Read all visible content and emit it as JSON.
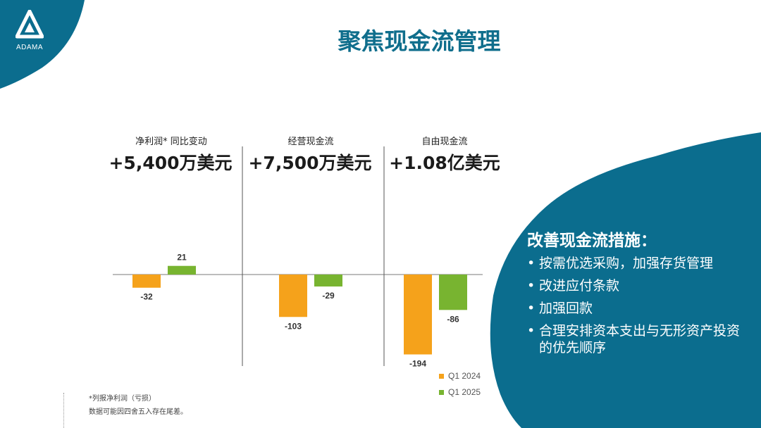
{
  "header": {
    "title": "聚焦现金流管理",
    "logo_text": "ADAMA"
  },
  "colors": {
    "brand_blue": "#0b6d8e",
    "q1_2024": "#f5a21b",
    "q1_2025": "#78b430"
  },
  "panels": [
    {
      "label": "净利润* 同比变动",
      "value": "+5,400万美元"
    },
    {
      "label": "经营现金流",
      "value": "+7,500万美元"
    },
    {
      "label": "自由现金流",
      "value": "+1.08亿美元"
    }
  ],
  "chart_data": {
    "type": "bar",
    "categories": [
      "净利润* 同比变动",
      "经营现金流",
      "自由现金流"
    ],
    "series": [
      {
        "name": "Q1 2024",
        "values": [
          -32,
          -103,
          -194
        ]
      },
      {
        "name": "Q1 2025",
        "values": [
          21,
          -29,
          -86
        ]
      }
    ],
    "legend": "bottom-right",
    "grid": false
  },
  "legend": {
    "q1_2024": "Q1 2024",
    "q1_2025": "Q1 2025"
  },
  "notes": {
    "line1": "*列报净利润（亏损）",
    "line2": "数据可能因四舍五入存在尾差。"
  },
  "measures": {
    "heading": "改善现金流措施：",
    "items": [
      "按需优选采购，加强存货管理",
      "改进应付条款",
      "加强回款",
      "合理安排资本支出与无形资产投资的优先顺序"
    ]
  }
}
